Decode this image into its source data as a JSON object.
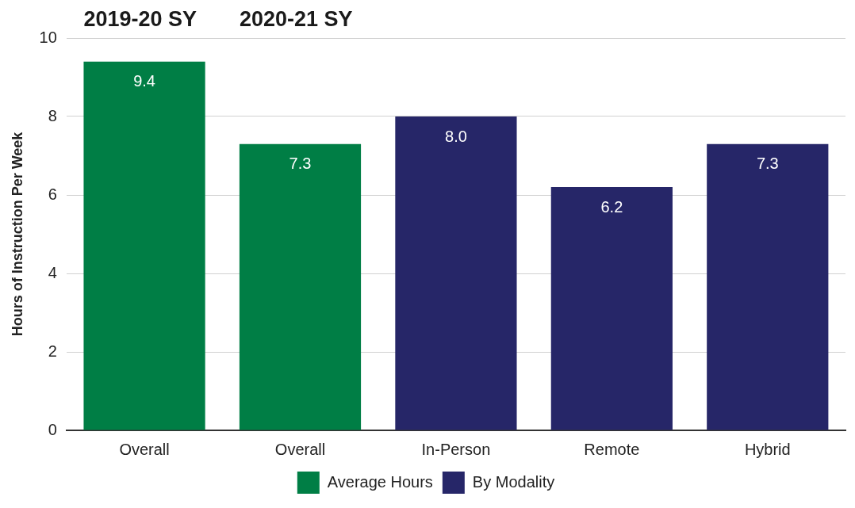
{
  "chart_data": {
    "type": "bar",
    "ylabel": "Hours of Instruction Per Week",
    "categories": [
      "Overall",
      "Overall",
      "In-Person",
      "Remote",
      "Hybrid"
    ],
    "series": [
      {
        "name": "Average Hours",
        "color": "#007e45",
        "values": [
          9.4,
          7.3,
          null,
          null,
          null
        ],
        "value_labels": [
          "9.4",
          "7.3",
          null,
          null,
          null
        ]
      },
      {
        "name": "By Modality",
        "color": "#262668",
        "values": [
          null,
          null,
          8.0,
          6.2,
          7.3
        ],
        "value_labels": [
          null,
          null,
          "8.0",
          "6.2",
          "7.3"
        ]
      }
    ],
    "ylim": [
      0,
      10
    ],
    "yticks": [
      0,
      2,
      4,
      6,
      8,
      10
    ],
    "grid": "y",
    "legend": "bottom",
    "annotations": [
      "2019-20 SY",
      "2020-21 SY"
    ]
  }
}
